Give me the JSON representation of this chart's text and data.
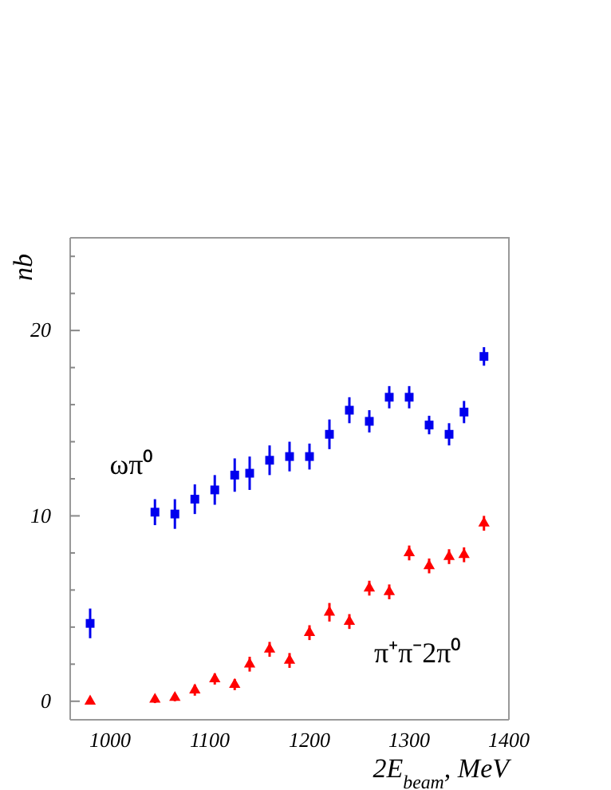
{
  "chart_data": {
    "type": "scatter",
    "xlabel": "2E$_{beam}$, MeV",
    "ylabel": "nb",
    "xlim": [
      960,
      1400
    ],
    "xticks": [
      1000,
      1100,
      1200,
      1300,
      1400
    ],
    "ylim": [
      -1,
      25
    ],
    "yticks": [
      0,
      {
        "value": 2,
        "label": null
      },
      {
        "value": 4,
        "label": null
      },
      {
        "value": 6,
        "label": null
      },
      {
        "value": 8,
        "label": null
      },
      10,
      {
        "value": 12,
        "label": null
      },
      {
        "value": 14,
        "label": null
      },
      {
        "value": 16,
        "label": null
      },
      {
        "value": 18,
        "label": null
      },
      20,
      {
        "value": 22,
        "label": null
      },
      {
        "value": 24,
        "label": null
      }
    ],
    "grid": false,
    "series": [
      {
        "name": "ωπ⁰",
        "color": "#0000ee",
        "marker": "square",
        "x": [
          980,
          1045,
          1065,
          1085,
          1105,
          1125,
          1140,
          1160,
          1180,
          1200,
          1220,
          1240,
          1260,
          1280,
          1300,
          1320,
          1340,
          1355,
          1375
        ],
        "values": [
          4.2,
          10.2,
          10.1,
          10.9,
          11.4,
          12.2,
          12.3,
          13.0,
          13.2,
          13.2,
          14.4,
          15.7,
          15.1,
          16.4,
          16.4,
          14.9,
          14.4,
          15.6,
          18.6
        ],
        "errors": [
          0.8,
          0.7,
          0.8,
          0.8,
          0.8,
          0.9,
          0.9,
          0.8,
          0.8,
          0.7,
          0.8,
          0.7,
          0.6,
          0.6,
          0.6,
          0.5,
          0.6,
          0.6,
          0.5
        ]
      },
      {
        "name": "π⁺π⁻2π⁰",
        "color": "#ff0000",
        "marker": "triangle",
        "x": [
          980,
          1045,
          1065,
          1085,
          1105,
          1125,
          1140,
          1160,
          1180,
          1200,
          1220,
          1240,
          1260,
          1280,
          1300,
          1320,
          1340,
          1355,
          1375
        ],
        "values": [
          0,
          0.1,
          0.2,
          0.6,
          1.2,
          0.9,
          2.0,
          2.8,
          2.2,
          3.7,
          4.8,
          4.3,
          6.1,
          5.9,
          8.0,
          7.3,
          7.8,
          7.9,
          9.6
        ],
        "errors": [
          0.1,
          0.2,
          0.2,
          0.3,
          0.3,
          0.3,
          0.4,
          0.4,
          0.4,
          0.4,
          0.5,
          0.4,
          0.4,
          0.4,
          0.4,
          0.4,
          0.4,
          0.4,
          0.4
        ]
      }
    ]
  }
}
